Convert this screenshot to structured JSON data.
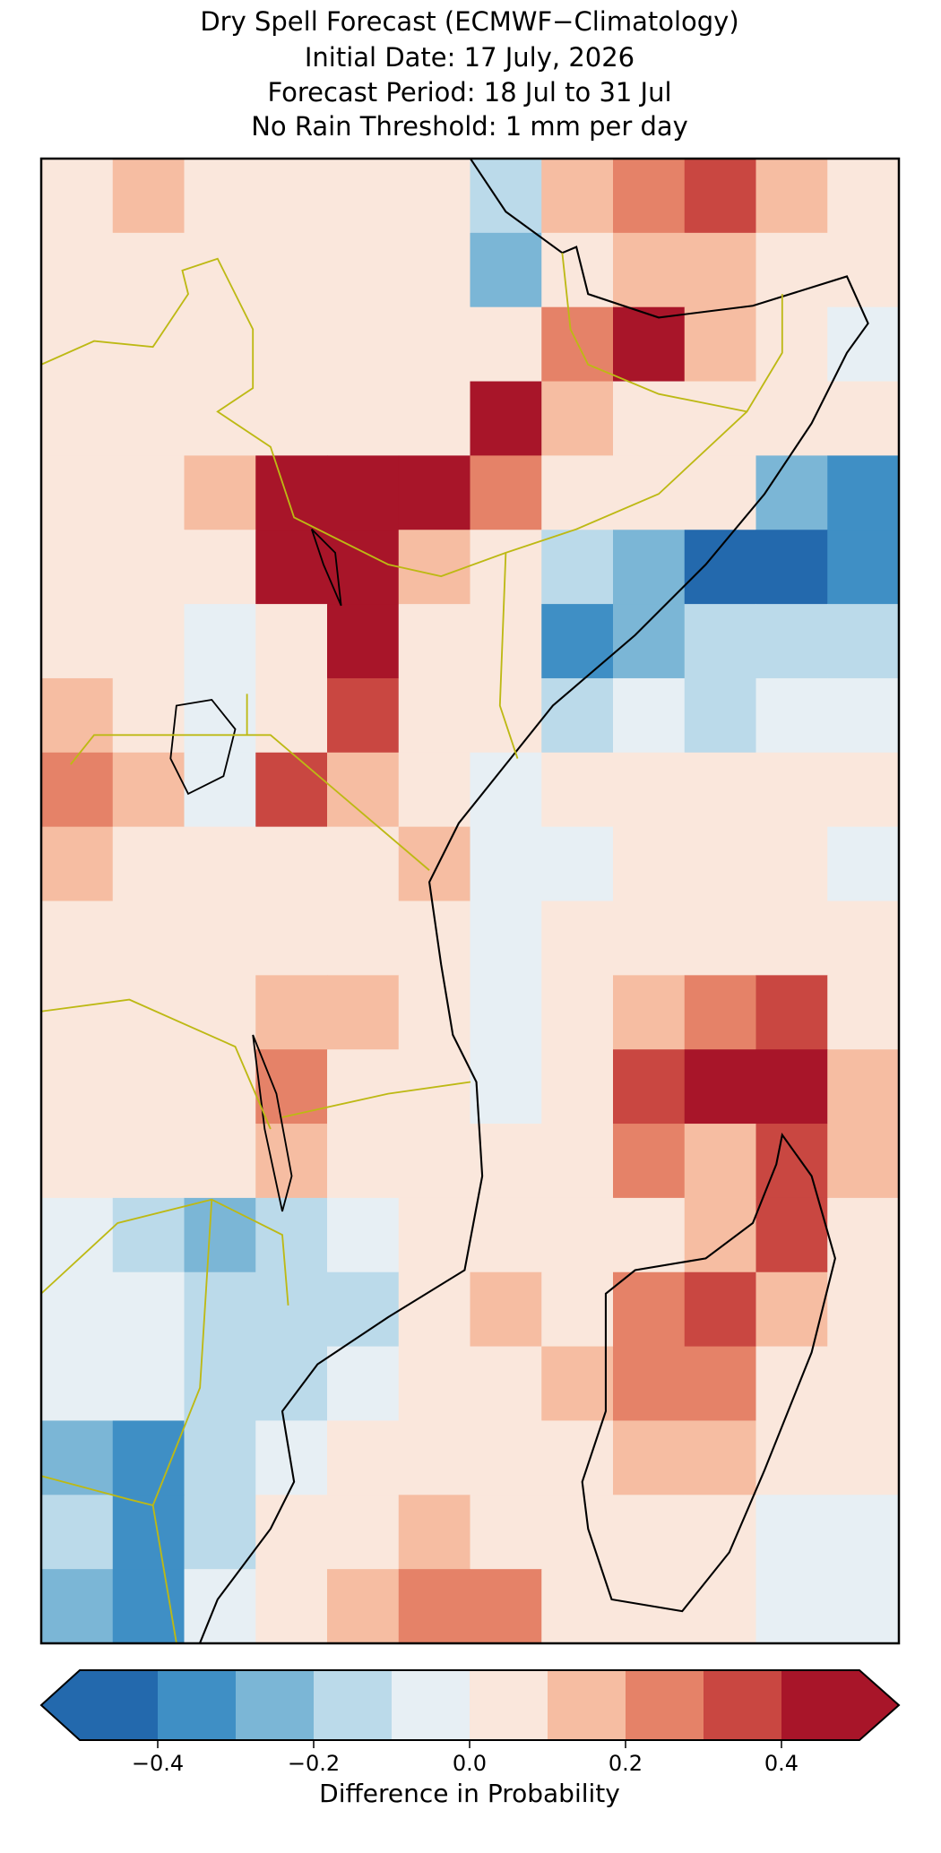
{
  "chart_data": {
    "type": "raster-map",
    "title": [
      "Dry Spell Forecast (ECMWF−Climatology)",
      "Initial Date: 17 July, 2026",
      "Forecast Period: 18 Jul to 31 Jul",
      "No Rain Threshold: 1 mm per day"
    ],
    "colorbar_label": "Difference in Probability",
    "clim": [
      -0.5,
      0.5
    ],
    "boundaries": [
      -0.5,
      -0.4,
      -0.3,
      -0.2,
      -0.1,
      0,
      0.1,
      0.2,
      0.3,
      0.4,
      0.5
    ],
    "colors": [
      "#2369ad",
      "#3f8fc5",
      "#7bb6d6",
      "#bbdaea",
      "#e7eff4",
      "#fae7dc",
      "#f6bda2",
      "#e58268",
      "#c94741",
      "#a81529"
    ],
    "colorbar_ticks": [
      {
        "value": -0.4,
        "label": "−0.4"
      },
      {
        "value": -0.2,
        "label": "−0.2"
      },
      {
        "value": 0,
        "label": "0.0"
      },
      0.2,
      0.4
    ],
    "values": [
      [
        0.05,
        0.15,
        0.05,
        0.05,
        0.05,
        0.05,
        -0.15,
        0.15,
        0.25,
        0.35,
        0.15,
        0.05
      ],
      [
        0.05,
        0.05,
        0.05,
        0.05,
        0.05,
        0.05,
        -0.25,
        0.05,
        0.15,
        0.15,
        0.05,
        0.05
      ],
      [
        0.05,
        0.05,
        0.05,
        0.05,
        0.05,
        0.05,
        0.05,
        0.25,
        0.45,
        0.15,
        0.05,
        -0.05
      ],
      [
        0.05,
        0.05,
        0.05,
        0.05,
        0.05,
        0.05,
        0.45,
        0.15,
        0.05,
        0.05,
        0.05,
        0.05
      ],
      [
        0.05,
        0.05,
        0.15,
        0.45,
        0.45,
        0.45,
        0.25,
        0.05,
        0.05,
        0.05,
        -0.25,
        -0.35
      ],
      [
        0.05,
        0.05,
        0.05,
        0.45,
        0.45,
        0.15,
        0.05,
        -0.15,
        -0.25,
        -0.45,
        -0.45,
        -0.35
      ],
      [
        0.05,
        0.05,
        -0.05,
        0.05,
        0.45,
        0.05,
        0.05,
        -0.35,
        -0.25,
        -0.15,
        -0.15,
        -0.15
      ],
      [
        0.15,
        0.05,
        -0.05,
        0.05,
        0.35,
        0.05,
        0.05,
        -0.15,
        -0.05,
        -0.15,
        -0.05,
        -0.05
      ],
      [
        0.25,
        0.15,
        -0.05,
        0.35,
        0.15,
        0.05,
        -0.05,
        0.05,
        0.05,
        0.05,
        0.05,
        0.05
      ],
      [
        0.15,
        0.05,
        0.05,
        0.05,
        0.05,
        0.15,
        -0.05,
        -0.05,
        0.05,
        0.05,
        0.05,
        -0.05
      ],
      [
        0.05,
        0.05,
        0.05,
        0.05,
        0.05,
        0.05,
        -0.05,
        0.05,
        0.05,
        0.05,
        0.05,
        0.05
      ],
      [
        0.05,
        0.05,
        0.05,
        0.15,
        0.15,
        0.05,
        -0.05,
        0.05,
        0.15,
        0.25,
        0.35,
        0.05
      ],
      [
        0.05,
        0.05,
        0.05,
        0.25,
        0.05,
        0.05,
        -0.05,
        0.05,
        0.35,
        0.45,
        0.45,
        0.15
      ],
      [
        0.05,
        0.05,
        0.05,
        0.15,
        0.05,
        0.05,
        0.05,
        0.05,
        0.25,
        0.15,
        0.35,
        0.15
      ],
      [
        -0.05,
        -0.15,
        -0.25,
        -0.15,
        -0.05,
        0.05,
        0.05,
        0.05,
        0.05,
        0.15,
        0.35,
        0.05
      ],
      [
        -0.05,
        -0.05,
        -0.15,
        -0.15,
        -0.15,
        0.05,
        0.15,
        0.05,
        0.25,
        0.35,
        0.15,
        0.05
      ],
      [
        -0.05,
        -0.05,
        -0.15,
        -0.15,
        -0.05,
        0.05,
        0.05,
        0.15,
        0.25,
        0.25,
        0.05,
        0.05
      ],
      [
        -0.25,
        -0.35,
        -0.15,
        -0.05,
        0.05,
        0.05,
        0.05,
        0.05,
        0.15,
        0.15,
        0.05,
        0.05
      ],
      [
        -0.15,
        -0.35,
        -0.15,
        0.05,
        0.05,
        0.15,
        0.05,
        0.05,
        0.05,
        0.05,
        -0.05,
        -0.05
      ],
      [
        -0.25,
        -0.35,
        -0.05,
        0.05,
        0.15,
        0.25,
        0.25,
        0.05,
        0.05,
        0.05,
        -0.05,
        -0.05
      ]
    ]
  }
}
